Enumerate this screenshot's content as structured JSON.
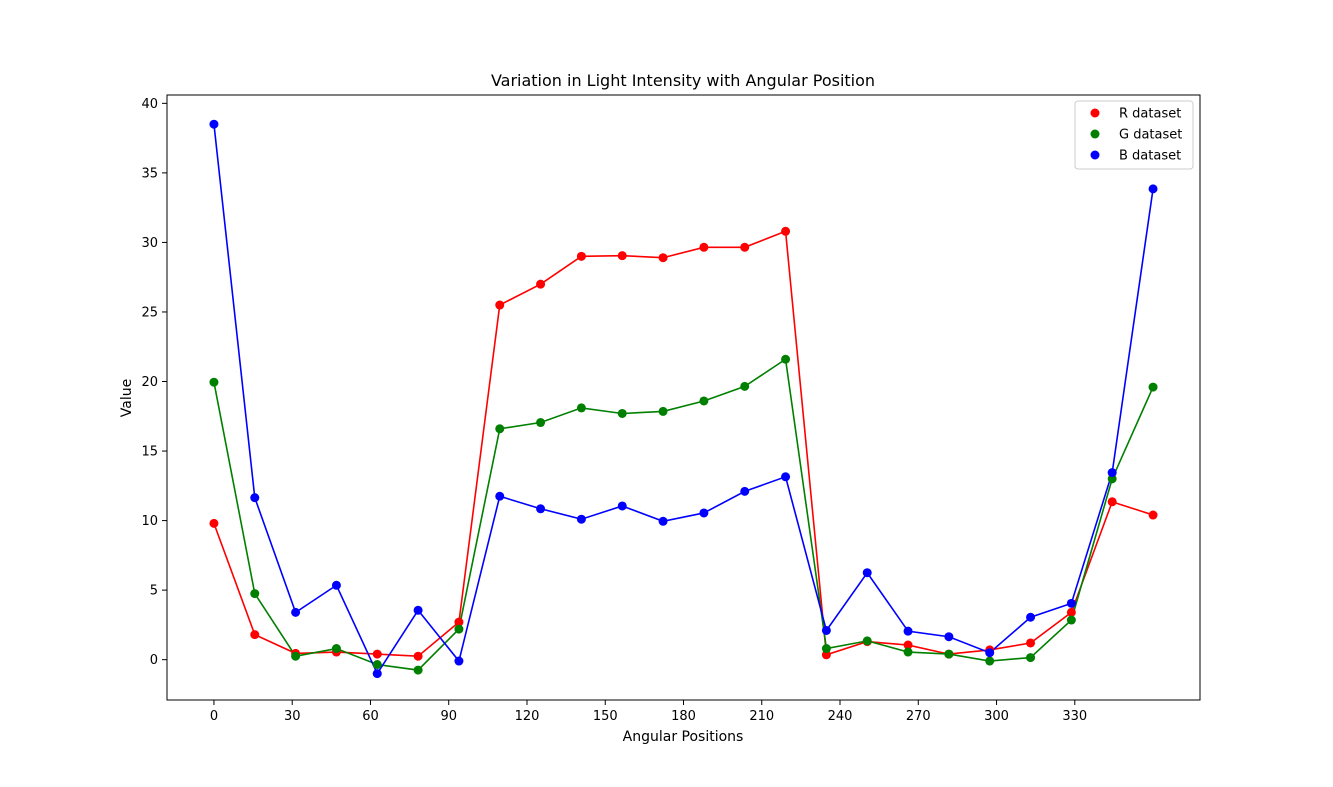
{
  "chart_data": {
    "type": "line",
    "title": "Variation in Light Intensity with Angular Position",
    "xlabel": "Angular Positions",
    "ylabel": "Value",
    "x": [
      0,
      15.65,
      31.3,
      46.95,
      62.6,
      78.26,
      93.91,
      109.56,
      125.21,
      140.86,
      156.52,
      172.17,
      187.82,
      203.47,
      219.13,
      234.78,
      250.43,
      266.08,
      281.73,
      297.39,
      313.04,
      328.69,
      344.34,
      360.0
    ],
    "xlim": [
      -18,
      378
    ],
    "ylim": [
      -2.9,
      40.6
    ],
    "xticks": [
      0,
      30,
      60,
      90,
      120,
      150,
      180,
      210,
      240,
      270,
      300,
      330
    ],
    "yticks": [
      0,
      5,
      10,
      15,
      20,
      25,
      30,
      35,
      40
    ],
    "grid": false,
    "legend_position": "top-right",
    "series": [
      {
        "name": "R dataset",
        "color": "#ff0000",
        "values": [
          9.8,
          1.8,
          0.45,
          0.55,
          0.4,
          0.25,
          2.7,
          25.5,
          27.0,
          29.0,
          29.05,
          28.9,
          29.65,
          29.65,
          30.8,
          0.35,
          1.3,
          1.05,
          0.4,
          0.7,
          1.2,
          3.4,
          11.35,
          10.4
        ]
      },
      {
        "name": "G dataset",
        "color": "#008000",
        "values": [
          19.95,
          4.75,
          0.25,
          0.8,
          -0.35,
          -0.75,
          2.2,
          16.6,
          17.05,
          18.1,
          17.7,
          17.85,
          18.6,
          19.65,
          21.6,
          0.8,
          1.35,
          0.55,
          0.4,
          -0.1,
          0.15,
          2.85,
          13.0,
          19.6
        ]
      },
      {
        "name": "B dataset",
        "color": "#0000ff",
        "values": [
          38.5,
          11.65,
          3.4,
          5.35,
          -1.0,
          3.55,
          -0.1,
          11.75,
          10.85,
          10.1,
          11.05,
          9.95,
          10.55,
          12.1,
          13.15,
          2.1,
          6.25,
          2.05,
          1.65,
          0.5,
          3.05,
          4.05,
          13.45,
          33.85
        ]
      }
    ]
  }
}
